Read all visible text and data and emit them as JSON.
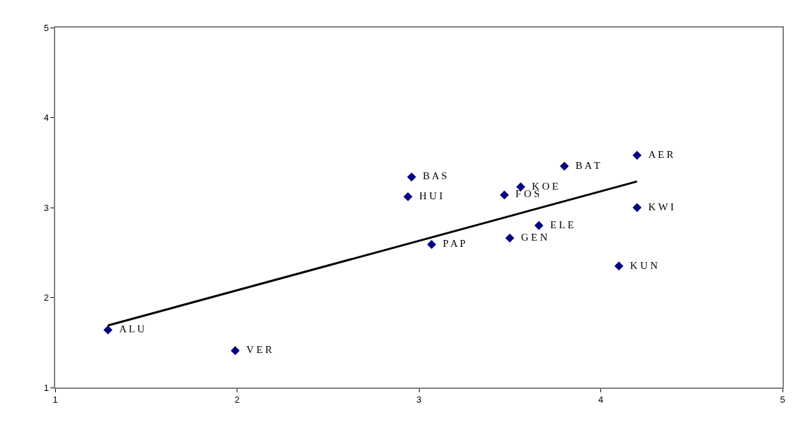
{
  "chart_data": {
    "type": "scatter",
    "xlim": [
      1,
      5
    ],
    "ylim": [
      1,
      5
    ],
    "xticks": [
      1,
      2,
      3,
      4,
      5
    ],
    "yticks": [
      1,
      2,
      3,
      4,
      5
    ],
    "grid": false,
    "marker": "diamond",
    "series": [
      {
        "type": "scatter",
        "color": "#000080",
        "x": [
          4.2,
          3.8,
          2.96,
          3.56,
          3.47,
          2.94,
          4.2,
          3.66,
          3.5,
          3.07,
          4.1,
          1.29,
          1.99
        ],
        "values": [
          3.58,
          3.46,
          3.34,
          3.23,
          3.14,
          3.12,
          3.0,
          2.8,
          2.66,
          2.59,
          2.35,
          1.64,
          1.41
        ],
        "value_labels": [
          "A E R",
          "B A T",
          "B A S",
          "K O E",
          "F O S",
          "H U I",
          "K W I",
          "E L E",
          "G E N",
          "P A P",
          "K U N",
          "A L U",
          "V E R"
        ]
      },
      {
        "type": "line",
        "color": "#000000",
        "x": [
          1.29,
          4.2
        ],
        "values": [
          1.69,
          3.29
        ],
        "marker": "none",
        "line_style": "solid"
      }
    ]
  }
}
